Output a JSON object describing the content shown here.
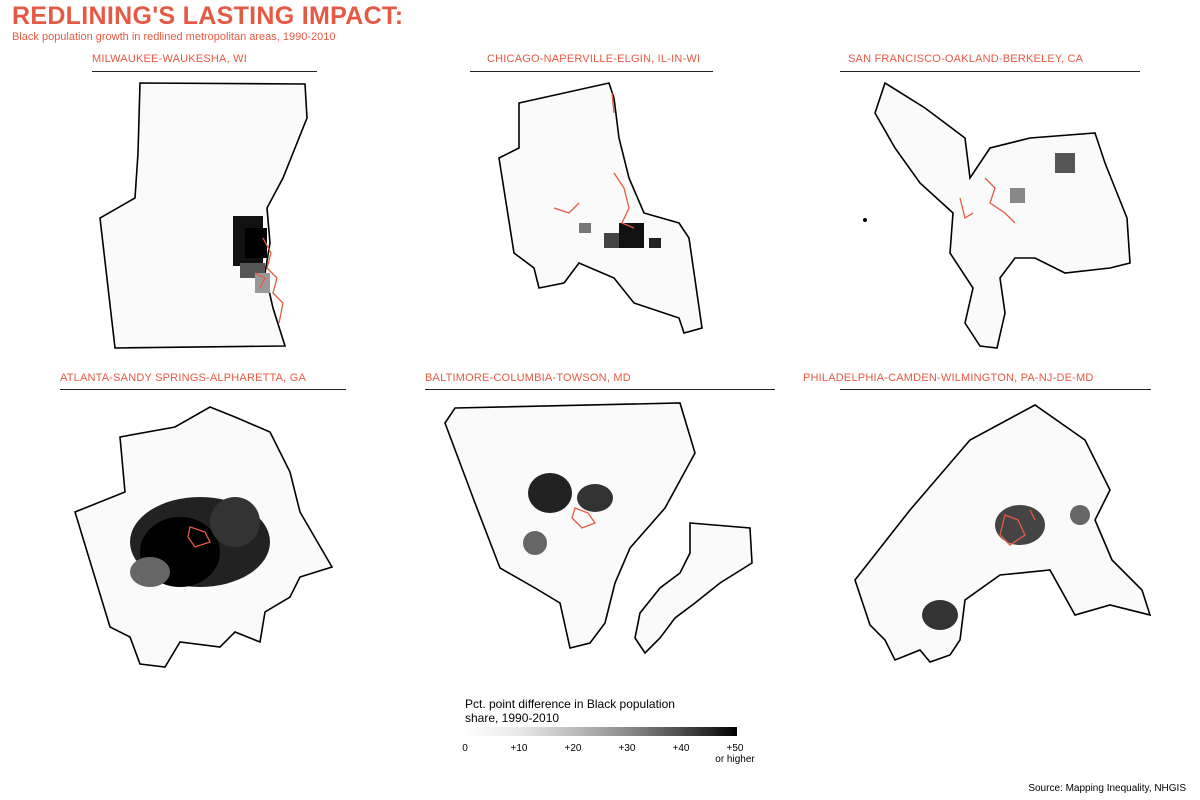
{
  "header": {
    "title": "REDLINING'S LASTING IMPACT:",
    "subtitle": "Black population growth in redlined metropolitan areas, 1990-2010"
  },
  "panels": [
    {
      "name": "MILWAUKEE-WAUKESHA, WI"
    },
    {
      "name": "CHICAGO-NAPERVILLE-ELGIN, IL-IN-WI"
    },
    {
      "name": "SAN FRANCISCO-OAKLAND-BERKELEY, CA"
    },
    {
      "name": "ATLANTA-SANDY SPRINGS-ALPHARETTA, GA"
    },
    {
      "name": "BALTIMORE-COLUMBIA-TOWSON, MD"
    },
    {
      "name": "PHILADELPHIA-CAMDEN-WILMINGTON, PA-NJ-DE-MD"
    }
  ],
  "legend": {
    "title": "Pct. point difference in Black population share, 1990-2010",
    "ticks": [
      "0",
      "+10",
      "+20",
      "+30",
      "+40",
      "+50"
    ],
    "last_tick_note": "or higher",
    "scale_min": 0,
    "scale_max": 50
  },
  "source": "Source: Mapping Inequality, NHGIS",
  "colors": {
    "accent": "#e55a44",
    "redlined_outline": "#e55a44",
    "boundary": "#000000"
  }
}
